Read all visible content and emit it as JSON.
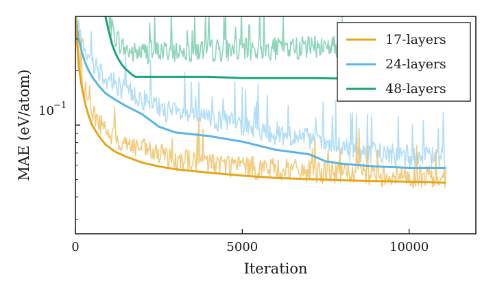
{
  "chart_data": {
    "type": "line",
    "xlabel": "Iteration",
    "ylabel": "MAE (eV/atom)",
    "xlim": [
      0,
      12000
    ],
    "ylim": [
      0.025,
      0.4
    ],
    "yscale": "log",
    "x_ticks": [
      0,
      5000,
      10000
    ],
    "x_tick_labels": [
      "0",
      "5000",
      "10000"
    ],
    "y_major_tick": 0.1,
    "y_major_tick_label": "10",
    "y_major_tick_exponent": "−1",
    "y_minor_ticks": [
      0.03,
      0.04,
      0.05,
      0.06,
      0.07,
      0.08,
      0.09,
      0.2,
      0.3
    ],
    "grid": false,
    "legend_position": "top-right",
    "series": [
      {
        "name": "17-layers",
        "color": "#e8a317",
        "noise_color": "#f1c46e",
        "x": [
          0,
          100,
          200,
          300,
          400,
          500,
          700,
          900,
          1200,
          1500,
          2000,
          2500,
          3000,
          4000,
          5000,
          6000,
          7000,
          8000,
          9000,
          10000,
          11100
        ],
        "y": [
          0.4,
          0.21,
          0.16,
          0.13,
          0.112,
          0.1,
          0.087,
          0.078,
          0.071,
          0.067,
          0.062,
          0.059,
          0.057,
          0.0545,
          0.0525,
          0.051,
          0.0502,
          0.0495,
          0.049,
          0.0485,
          0.048
        ],
        "noise_y": [
          0.4,
          0.24,
          0.18,
          0.15,
          0.13,
          0.118,
          0.104,
          0.093,
          0.084,
          0.079,
          0.073,
          0.068,
          0.065,
          0.062,
          0.059,
          0.057,
          0.0555,
          0.054,
          0.053,
          0.052,
          0.0515
        ]
      },
      {
        "name": "24-layers",
        "color": "#56b4e9",
        "noise_color": "#a9d9f5",
        "x": [
          0,
          100,
          200,
          300,
          400,
          500,
          700,
          900,
          1200,
          1500,
          2000,
          2500,
          3000,
          4000,
          5000,
          6000,
          7000,
          7500,
          8000,
          9000,
          10000,
          11100
        ],
        "y": [
          0.4,
          0.3,
          0.25,
          0.22,
          0.2,
          0.185,
          0.165,
          0.15,
          0.138,
          0.128,
          0.115,
          0.098,
          0.091,
          0.087,
          0.081,
          0.073,
          0.069,
          0.063,
          0.061,
          0.059,
          0.058,
          0.058
        ],
        "noise_y": [
          0.4,
          0.35,
          0.3,
          0.27,
          0.245,
          0.23,
          0.205,
          0.185,
          0.17,
          0.157,
          0.14,
          0.125,
          0.115,
          0.108,
          0.1,
          0.09,
          0.083,
          0.078,
          0.074,
          0.07,
          0.067,
          0.066
        ]
      },
      {
        "name": "48-layers",
        "color": "#1aa37a",
        "noise_color": "#7fcfb0",
        "x": [
          900,
          1000,
          1100,
          1200,
          1300,
          1400,
          1500,
          1600,
          1700,
          1800,
          2500,
          4000,
          5000,
          6000,
          7000,
          8000
        ],
        "y": [
          0.4,
          0.33,
          0.28,
          0.25,
          0.23,
          0.215,
          0.205,
          0.197,
          0.19,
          0.185,
          0.185,
          0.185,
          0.182,
          0.182,
          0.182,
          0.181
        ],
        "noise_y": [
          0.4,
          0.38,
          0.34,
          0.31,
          0.29,
          0.27,
          0.26,
          0.255,
          0.25,
          0.25,
          0.255,
          0.26,
          0.26,
          0.265,
          0.27,
          0.275
        ]
      }
    ]
  }
}
